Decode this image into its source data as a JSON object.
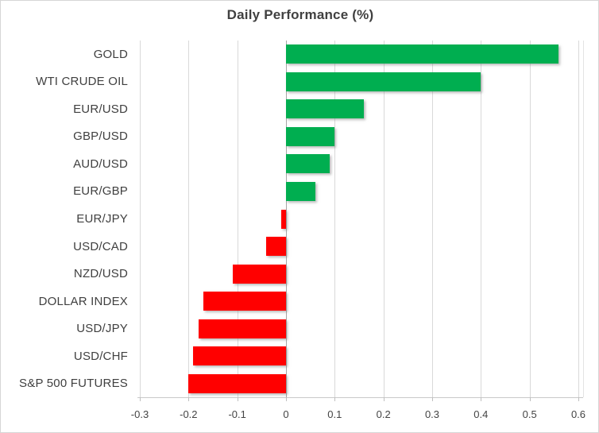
{
  "title": "Daily Performance (%)",
  "colors": {
    "positive_bar": "#00AE50",
    "negative_bar": "#FF0000",
    "gridline": "#D9D9D9",
    "zero_line": "#A6A6A6",
    "axis_line": "#C9C9C9",
    "text": "#404040",
    "chart_border": "#D6D6D6"
  },
  "chart_data": {
    "type": "bar",
    "orientation": "horizontal",
    "title": "Daily Performance (%)",
    "categories": [
      "GOLD",
      "WTI CRUDE OIL",
      "EUR/USD",
      "GBP/USD",
      "AUD/USD",
      "EUR/GBP",
      "EUR/JPY",
      "USD/CAD",
      "NZD/USD",
      "DOLLAR INDEX",
      "USD/JPY",
      "USD/CHF",
      "S&P 500 FUTURES"
    ],
    "values": [
      0.56,
      0.4,
      0.16,
      0.1,
      0.09,
      0.06,
      -0.01,
      -0.04,
      -0.11,
      -0.17,
      -0.18,
      -0.19,
      -0.2
    ],
    "tick_values": [
      -0.3,
      -0.2,
      -0.1,
      0,
      0.1,
      0.2,
      0.3,
      0.4,
      0.5,
      0.6
    ],
    "tick_labels": [
      "-0.3",
      "-0.2",
      "-0.1",
      "0",
      "0.1",
      "0.2",
      "0.3",
      "0.4",
      "0.5",
      "0.6"
    ],
    "xlim": [
      -0.3,
      0.6
    ],
    "grid": true,
    "legend": "none",
    "value_color_rule": "green if positive, red if negative"
  }
}
